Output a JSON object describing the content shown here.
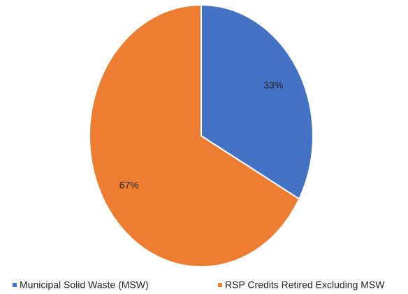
{
  "chart_data": {
    "type": "pie",
    "categories": [
      "Municipal Solid Waste (MSW)",
      "RSP Credits Retired Excluding MSW"
    ],
    "values": [
      33,
      67
    ],
    "value_labels": [
      "33%",
      "67%"
    ],
    "colors": [
      "#4472c4",
      "#ed7d31"
    ],
    "legend": "bottom"
  }
}
